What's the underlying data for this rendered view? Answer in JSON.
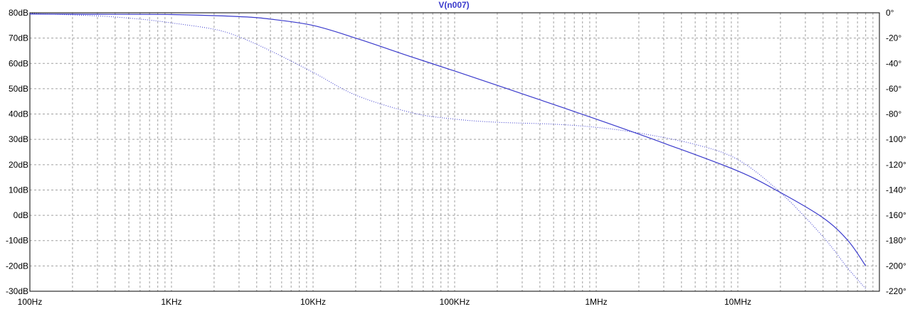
{
  "chart_data": {
    "type": "line",
    "title": "V(n007)",
    "x_scale": "log",
    "xlim": [
      100,
      100000000
    ],
    "x_ticks": [
      {
        "value": 100,
        "label": "100Hz"
      },
      {
        "value": 1000,
        "label": "1KHz"
      },
      {
        "value": 10000,
        "label": "10KHz"
      },
      {
        "value": 100000,
        "label": "100KHz"
      },
      {
        "value": 1000000,
        "label": "1MHz"
      },
      {
        "value": 10000000,
        "label": "10MHz"
      }
    ],
    "ylim_left": [
      -30,
      80
    ],
    "left_ticks": [
      {
        "value": 80,
        "label": "80dB"
      },
      {
        "value": 70,
        "label": "70dB"
      },
      {
        "value": 60,
        "label": "60dB"
      },
      {
        "value": 50,
        "label": "50dB"
      },
      {
        "value": 40,
        "label": "40dB"
      },
      {
        "value": 30,
        "label": "30dB"
      },
      {
        "value": 20,
        "label": "20dB"
      },
      {
        "value": 10,
        "label": "10dB"
      },
      {
        "value": 0,
        "label": "0dB"
      },
      {
        "value": -10,
        "label": "-10dB"
      },
      {
        "value": -20,
        "label": "-20dB"
      },
      {
        "value": -30,
        "label": "-30dB"
      }
    ],
    "ylim_right": [
      -220,
      0
    ],
    "right_ticks": [
      {
        "value": 0,
        "label": "0°"
      },
      {
        "value": -20,
        "label": "-20°"
      },
      {
        "value": -40,
        "label": "-40°"
      },
      {
        "value": -60,
        "label": "-60°"
      },
      {
        "value": -80,
        "label": "-80°"
      },
      {
        "value": -100,
        "label": "-100°"
      },
      {
        "value": -120,
        "label": "-120°"
      },
      {
        "value": -140,
        "label": "-140°"
      },
      {
        "value": -160,
        "label": "-160°"
      },
      {
        "value": -180,
        "label": "-180°"
      },
      {
        "value": -200,
        "label": "-200°"
      },
      {
        "value": -220,
        "label": "-220°"
      }
    ],
    "grid": true,
    "series": [
      {
        "axis": "left",
        "style": "solid",
        "color": "#3a3acc",
        "x": [
          100,
          300,
          1000,
          3000,
          5000,
          10000,
          20000,
          50000,
          100000,
          300000,
          1000000,
          3000000,
          10000000,
          20000000,
          40000000,
          60000000,
          80000000
        ],
        "y": [
          79.5,
          79.4,
          79.3,
          78.5,
          77.5,
          75.0,
          70.0,
          62.5,
          57.0,
          48.0,
          38.0,
          28.5,
          17.5,
          9.0,
          -1.0,
          -10.0,
          -20.0
        ]
      },
      {
        "axis": "right",
        "style": "dotted",
        "color": "#3a3acc",
        "x": [
          100,
          300,
          600,
          1000,
          2000,
          3000,
          5000,
          10000,
          20000,
          50000,
          100000,
          200000,
          500000,
          1000000,
          2000000,
          5000000,
          10000000,
          20000000,
          40000000,
          60000000,
          80000000
        ],
        "y": [
          -0.5,
          -2.5,
          -5.0,
          -8.0,
          -13.0,
          -19.0,
          -30.0,
          -47.0,
          -65.0,
          -79.0,
          -84.0,
          -86.5,
          -88.0,
          -90.5,
          -95.0,
          -104.0,
          -116.0,
          -142.0,
          -177.0,
          -202.0,
          -218.0
        ]
      }
    ]
  }
}
